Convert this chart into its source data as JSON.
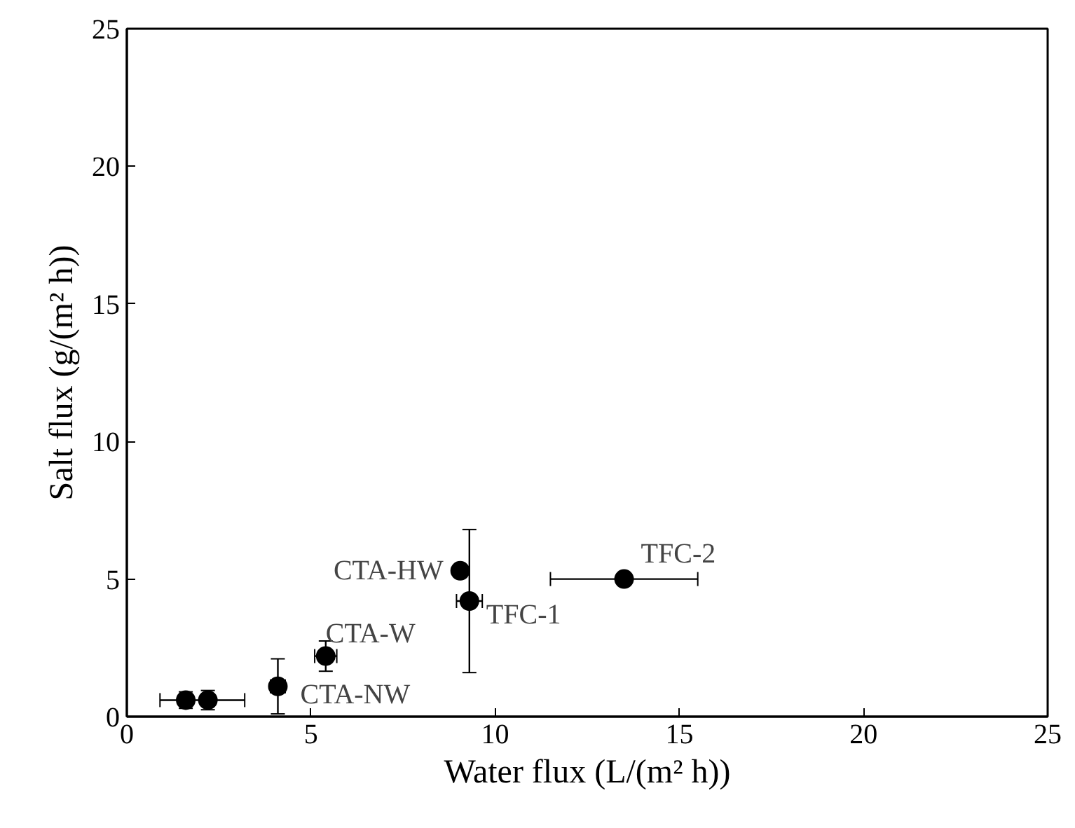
{
  "chart_data": {
    "type": "scatter",
    "xlabel": "Water flux (L/(m² h))",
    "ylabel": "Salt flux (g/(m² h))",
    "xlim": [
      0,
      25
    ],
    "ylim": [
      0,
      25
    ],
    "xticks": [
      0,
      5,
      10,
      15,
      20,
      25
    ],
    "yticks": [
      0,
      5,
      10,
      15,
      20,
      25
    ],
    "grid": false,
    "marker": "circle",
    "series": [
      {
        "color": "#000000",
        "x": [
          1.6,
          2.2,
          4.1,
          5.4,
          9.05,
          9.3,
          13.5
        ],
        "values": [
          0.6,
          0.6,
          1.1,
          2.2,
          5.3,
          4.2,
          5.0
        ],
        "errors": [
          0.3,
          0.35,
          1.0,
          0.55,
          null,
          [
            1.6,
            6.8
          ],
          null
        ],
        "xerrors": [
          null,
          [
            0.9,
            3.2
          ],
          0.2,
          0.3,
          null,
          0.35,
          2.0
        ]
      }
    ],
    "annotations": [
      {
        "text": "CTA-NW",
        "x": 4.1,
        "y": 1.1
      },
      {
        "text": "CTA-W",
        "x": 5.4,
        "y": 2.2
      },
      {
        "text": "CTA-HW",
        "x": 9.05,
        "y": 5.3
      },
      {
        "text": "TFC-1",
        "x": 9.3,
        "y": 4.2
      },
      {
        "text": "TFC-2",
        "x": 13.5,
        "y": 5.0
      }
    ]
  }
}
